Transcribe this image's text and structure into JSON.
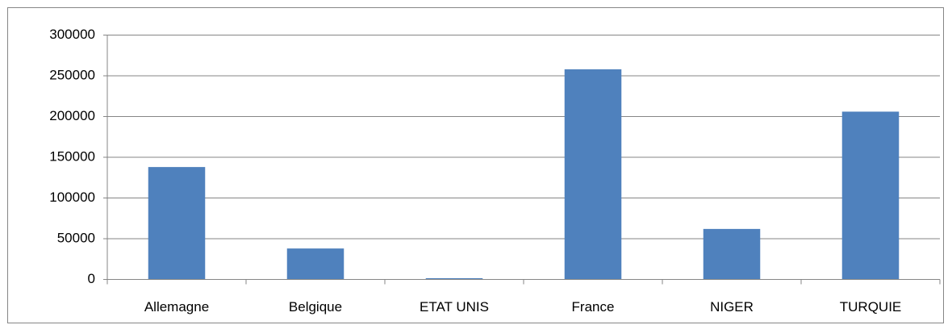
{
  "chart_data": {
    "type": "bar",
    "categories": [
      "Allemagne",
      "Belgique",
      "ETAT UNIS",
      "France",
      "NIGER",
      "TURQUIE"
    ],
    "values": [
      138000,
      38000,
      1500,
      258000,
      62000,
      206000
    ],
    "color": "#4f81bd",
    "ylim": [
      0,
      300000
    ],
    "yticks": [
      0,
      50000,
      100000,
      150000,
      200000,
      250000,
      300000
    ],
    "grid": true
  }
}
